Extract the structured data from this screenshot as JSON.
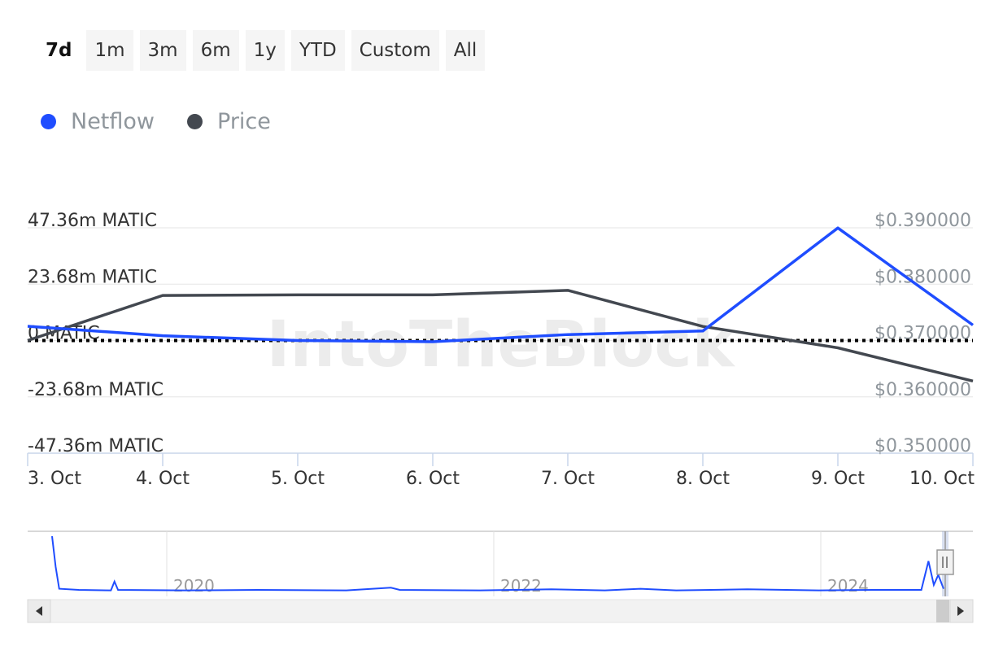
{
  "range_buttons": [
    {
      "label": "7d",
      "active": true
    },
    {
      "label": "1m",
      "active": false
    },
    {
      "label": "3m",
      "active": false
    },
    {
      "label": "6m",
      "active": false
    },
    {
      "label": "1y",
      "active": false
    },
    {
      "label": "YTD",
      "active": false
    },
    {
      "label": "Custom",
      "active": false
    },
    {
      "label": "All",
      "active": false
    }
  ],
  "watermark": "IntoTheBlock",
  "colors": {
    "netflow": "#1f4dff",
    "price": "#434850",
    "grid": "#e6e6e6",
    "axis": "#c8d6ea"
  },
  "chart_data": {
    "type": "line",
    "title": "",
    "x": [
      "3. Oct",
      "4. Oct",
      "5. Oct",
      "6. Oct",
      "7. Oct",
      "8. Oct",
      "9. Oct",
      "10. Oct"
    ],
    "series": [
      {
        "name": "Netflow",
        "axis": "left",
        "color": "#1f4dff",
        "values": [
          6.0,
          2.0,
          0.0,
          -0.5,
          2.5,
          4.0,
          47.3,
          6.5
        ]
      },
      {
        "name": "Price",
        "axis": "right",
        "color": "#434850",
        "values": [
          0.37,
          0.378,
          0.3781,
          0.3781,
          0.3789,
          0.3725,
          0.3687,
          0.3628
        ]
      }
    ],
    "y_left": {
      "ticks": [
        47.36,
        23.68,
        0,
        -23.68,
        -47.36
      ],
      "tick_labels": [
        "47.36m MATIC",
        "23.68m MATIC",
        "0 MATIC",
        "-23.68m MATIC",
        "-47.36m MATIC"
      ],
      "ylim": [
        -47.36,
        47.36
      ]
    },
    "y_right": {
      "ticks": [
        0.39,
        0.38,
        0.37,
        0.36,
        0.35
      ],
      "tick_labels": [
        "$0.390000",
        "$0.380000",
        "$0.370000",
        "$0.360000",
        "$0.350000"
      ],
      "ylim": [
        0.35,
        0.39
      ]
    },
    "zero_line": "dotted",
    "grid": true,
    "legend": {
      "position": "top-left",
      "entries": [
        "Netflow",
        "Price"
      ]
    },
    "navigator": {
      "labels": [
        "2020",
        "2022",
        "2024"
      ],
      "series": [
        {
          "x": 0.0,
          "v": 1.0
        },
        {
          "x": 0.004,
          "v": 0.45
        },
        {
          "x": 0.008,
          "v": 0.05
        },
        {
          "x": 0.03,
          "v": 0.03
        },
        {
          "x": 0.066,
          "v": 0.02
        },
        {
          "x": 0.07,
          "v": 0.18
        },
        {
          "x": 0.074,
          "v": 0.03
        },
        {
          "x": 0.15,
          "v": 0.02
        },
        {
          "x": 0.23,
          "v": 0.03
        },
        {
          "x": 0.33,
          "v": 0.02
        },
        {
          "x": 0.38,
          "v": 0.07
        },
        {
          "x": 0.39,
          "v": 0.03
        },
        {
          "x": 0.48,
          "v": 0.02
        },
        {
          "x": 0.56,
          "v": 0.04
        },
        {
          "x": 0.62,
          "v": 0.02
        },
        {
          "x": 0.66,
          "v": 0.05
        },
        {
          "x": 0.7,
          "v": 0.02
        },
        {
          "x": 0.78,
          "v": 0.04
        },
        {
          "x": 0.86,
          "v": 0.02
        },
        {
          "x": 0.92,
          "v": 0.03
        },
        {
          "x": 0.975,
          "v": 0.03
        },
        {
          "x": 0.983,
          "v": 0.55
        },
        {
          "x": 0.989,
          "v": 0.12
        },
        {
          "x": 0.994,
          "v": 0.3
        },
        {
          "x": 1.0,
          "v": 0.05
        }
      ]
    }
  }
}
